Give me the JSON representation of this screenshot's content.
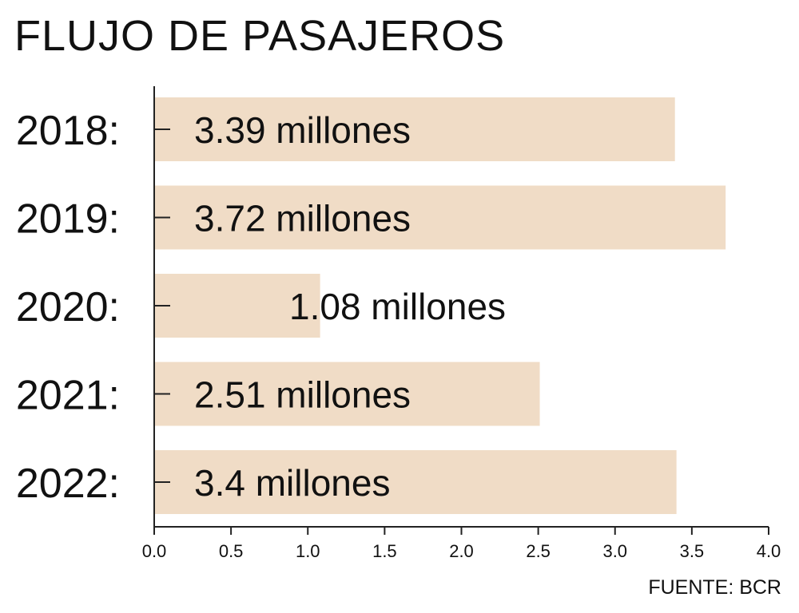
{
  "chart_data": {
    "type": "bar",
    "orientation": "horizontal",
    "title": "FLUJO DE PASAJEROS",
    "categories": [
      "2018:",
      "2019:",
      "2020:",
      "2021:",
      "2022:"
    ],
    "values": [
      3.39,
      3.72,
      1.08,
      2.51,
      3.4
    ],
    "data_labels": [
      "3.39 millones",
      "3.72 millones",
      "1.08 millones",
      "2.51 millones",
      "3.4 millones"
    ],
    "xlim": [
      0,
      4
    ],
    "xticks": [
      "0.0",
      "0.5",
      "1.0",
      "1.5",
      "2.0",
      "2.5",
      "3.0",
      "3.5",
      "4.0"
    ],
    "xlabel": "",
    "ylabel": "",
    "grid": false,
    "legend": "none",
    "bar_color": "#f0dcc6",
    "source": "FUENTE: BCR"
  }
}
